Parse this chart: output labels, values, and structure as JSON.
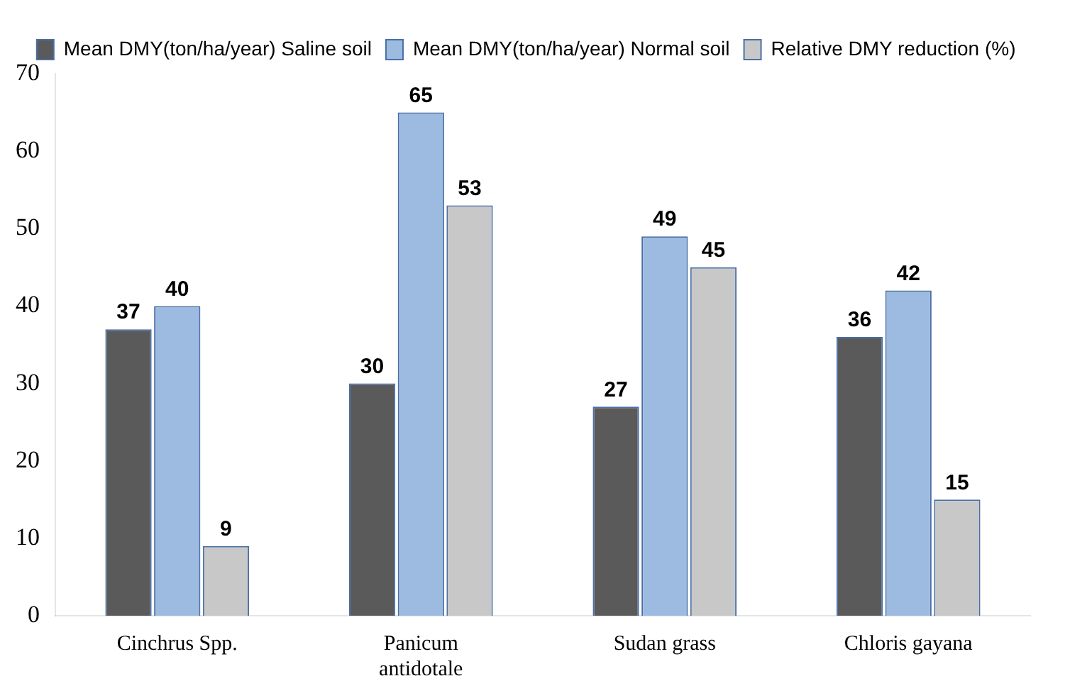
{
  "chart_data": {
    "type": "bar",
    "categories": [
      "Cinchrus Spp.",
      "Panicum antidotale",
      "Sudan grass",
      "Chloris gayana"
    ],
    "series": [
      {
        "name": "Mean DMY(ton/ha/year) Saline soil",
        "color": "#5a5a5a",
        "values": [
          37,
          30,
          27,
          36
        ]
      },
      {
        "name": "Mean DMY(ton/ha/year) Normal soil",
        "color": "#9dbbe0",
        "values": [
          40,
          65,
          49,
          42
        ]
      },
      {
        "name": "Relative DMY reduction (%)",
        "color": "#c8c8c8",
        "values": [
          9,
          53,
          45,
          15
        ]
      }
    ],
    "ylim": [
      0,
      70
    ],
    "yticks": [
      0,
      10,
      20,
      30,
      40,
      50,
      60,
      70
    ],
    "grid": false,
    "legend": "top right",
    "data_labels": true
  }
}
